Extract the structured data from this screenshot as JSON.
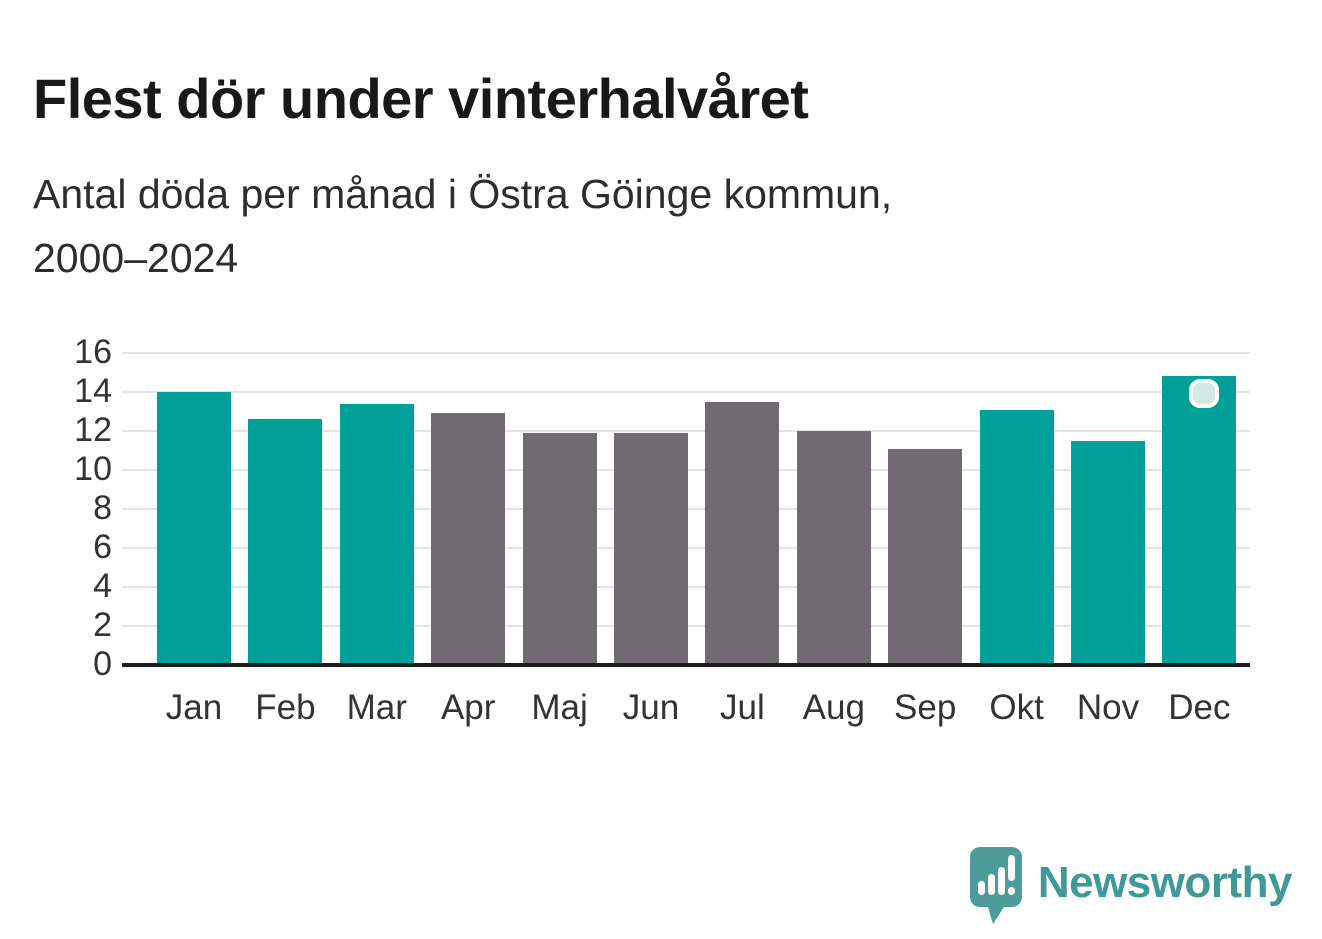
{
  "header": {
    "title": "Flest dör under vinterhalvåret",
    "subtitle": "Antal döda per månad i Östra Göinge kommun,\n2000–2024"
  },
  "chart_data": {
    "type": "bar",
    "title": "Flest dör under vinterhalvåret",
    "subtitle": "Antal döda per månad i Östra Göinge kommun, 2000–2024",
    "categories": [
      "Jan",
      "Feb",
      "Mar",
      "Apr",
      "Maj",
      "Jun",
      "Jul",
      "Aug",
      "Sep",
      "Okt",
      "Nov",
      "Dec"
    ],
    "values": [
      14.0,
      12.6,
      13.4,
      12.9,
      11.9,
      11.9,
      13.5,
      12.0,
      11.1,
      13.1,
      11.5,
      14.8
    ],
    "bar_colors": [
      "#00a099",
      "#00a099",
      "#00a099",
      "#6f6b70",
      "#6f6b70",
      "#6f6b70",
      "#6f6b70",
      "#6f6b70",
      "#6f6b70",
      "#00a099",
      "#00a099",
      "#00a099"
    ],
    "xlabel": "",
    "ylabel": "",
    "ylim": [
      0,
      16
    ],
    "yticks": [
      0,
      2,
      4,
      6,
      8,
      10,
      12,
      14,
      16
    ],
    "grid": true,
    "legend_position": "none",
    "highlight": {
      "category": "Dec",
      "marker": "rounded-square-badge",
      "fill": "#d2e9e6",
      "border": "#ffffff"
    }
  },
  "colors": {
    "winter_bar": "#00a099",
    "summer_bar": "#6f6b70",
    "axis": "#1d1d1d",
    "gridline": "#e4e4e4",
    "tick_label": "#333333"
  },
  "branding": {
    "name": "Newsworthy",
    "color": "#3f9a97",
    "icon": "newsworthy-speech-bubble-chart-icon"
  }
}
